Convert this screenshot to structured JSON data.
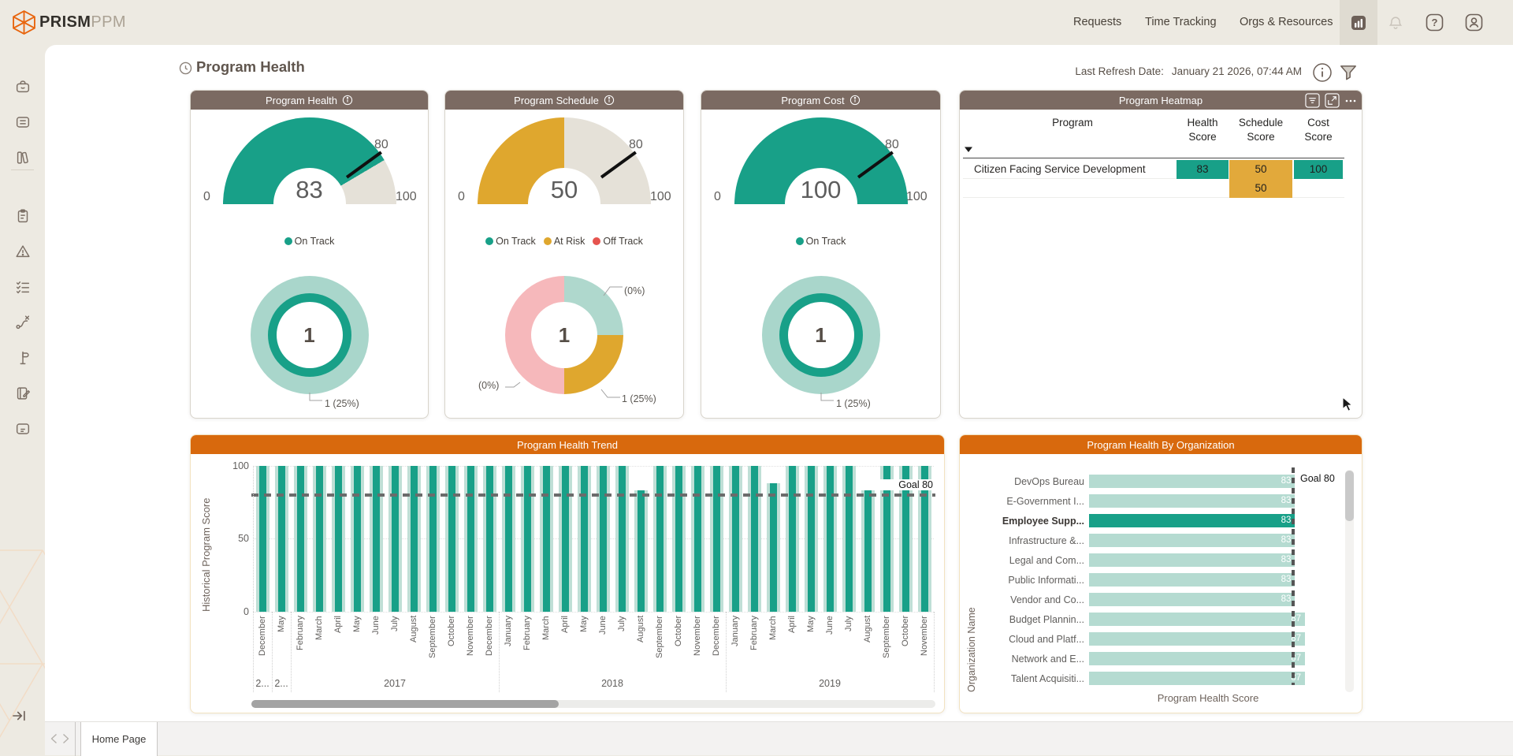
{
  "brand": {
    "bold": "PRISM",
    "light": "PPM"
  },
  "topnav": {
    "links": [
      "Requests",
      "Time Tracking",
      "Orgs & Resources"
    ],
    "icons": [
      "reports-icon",
      "notifications-bell-icon",
      "help-icon",
      "account-icon"
    ]
  },
  "page": {
    "title": "Program Health",
    "last_refresh_label": "Last Refresh Date:",
    "last_refresh_value": "January 21 2026, 07:44 AM"
  },
  "sidebar": {
    "icons": [
      "briefcase-icon",
      "cards-icon",
      "library-icon",
      "clipboard-icon",
      "risk-warning-icon",
      "checklist-icon",
      "route-icon",
      "milestone-flag-icon",
      "notebook-icon",
      "id-card-icon",
      "expand-sidebar-icon"
    ]
  },
  "footer": {
    "active_tab": "Home Page"
  },
  "colors": {
    "teal": "#18A088",
    "teal_light": "#B5DBD1",
    "amber": "#DFA72E",
    "pink": "#F6B8BB",
    "red": "#E6544F",
    "orange_header": "#D8690D",
    "brown_header": "#7B6A62",
    "beige": "#EDEAE2"
  },
  "chart_data": [
    {
      "id": "health_gauge",
      "type": "gauge",
      "title": "Program Health",
      "value": 83,
      "min": 0,
      "max": 100,
      "target": 80,
      "color": "#18A088",
      "legend": [
        {
          "label": "On Track",
          "color": "#18A088"
        }
      ]
    },
    {
      "id": "health_donut",
      "type": "donut",
      "center_value": "1",
      "outer_color": "#A9D6CB",
      "ring_color": "#18A088",
      "segments": [
        {
          "label": "On Track",
          "value": 1,
          "callout": "1 (25%)"
        }
      ]
    },
    {
      "id": "schedule_gauge",
      "type": "gauge",
      "title": "Program Schedule",
      "value": 50,
      "min": 0,
      "max": 100,
      "target": 80,
      "color": "#DFA72E",
      "legend": [
        {
          "label": "On Track",
          "color": "#18A088"
        },
        {
          "label": "At Risk",
          "color": "#DFA72E"
        },
        {
          "label": "Off Track",
          "color": "#E6544F"
        }
      ]
    },
    {
      "id": "schedule_donut",
      "type": "donut",
      "center_value": "1",
      "segments": [
        {
          "label": "On Track",
          "callout": "(0%)",
          "sweep": 25,
          "color": "#AFD8CD"
        },
        {
          "label": "At Risk",
          "callout": "1 (25%)",
          "sweep": 25,
          "color": "#DFA72E"
        },
        {
          "label": "Off Track",
          "callout": "(0%)",
          "sweep": 50,
          "color": "#F6B8BB"
        }
      ]
    },
    {
      "id": "cost_gauge",
      "type": "gauge",
      "title": "Program Cost",
      "value": 100,
      "min": 0,
      "max": 100,
      "target": 80,
      "color": "#18A088",
      "legend": [
        {
          "label": "On Track",
          "color": "#18A088"
        }
      ]
    },
    {
      "id": "cost_donut",
      "type": "donut",
      "center_value": "1",
      "outer_color": "#A9D6CB",
      "ring_color": "#18A088",
      "segments": [
        {
          "label": "On Track",
          "value": 1,
          "callout": "1 (25%)"
        }
      ]
    },
    {
      "id": "heatmap",
      "type": "table",
      "title": "Program Heatmap",
      "columns": [
        "Program",
        "Health Score",
        "Schedule Score",
        "Cost Score"
      ],
      "rows": [
        {
          "program": "Citizen Facing Service Development",
          "cells": [
            {
              "col": "health",
              "value": "83",
              "color": "#18A088"
            },
            {
              "col": "schedule",
              "value": "50",
              "color": "#E2A93B"
            },
            {
              "col": "cost",
              "value": "100",
              "color": "#18A088"
            }
          ]
        },
        {
          "program": "",
          "cells": [
            {
              "col": "schedule",
              "value": "50",
              "color": "#E2A93B"
            }
          ]
        }
      ],
      "toolbar": [
        "filter-icon",
        "popout-icon",
        "more-options-icon"
      ]
    },
    {
      "id": "trend",
      "type": "bar",
      "title": "Program Health Trend",
      "ylabel": "Historical Program Score",
      "yticks": [
        "100",
        "50",
        "0"
      ],
      "ylim": [
        0,
        100
      ],
      "goal": {
        "value": 80,
        "label": "Goal 80"
      },
      "bar_color": "#18A088",
      "band_color": "#BFDFD6",
      "months": [
        "December",
        "May",
        "February",
        "March",
        "April",
        "May",
        "June",
        "July",
        "August",
        "September",
        "October",
        "November",
        "December",
        "January",
        "February",
        "March",
        "April",
        "May",
        "June",
        "July",
        "August",
        "September",
        "October",
        "November",
        "December",
        "January",
        "February",
        "March",
        "April",
        "May",
        "June",
        "July",
        "August",
        "September",
        "October",
        "November"
      ],
      "values": [
        100,
        100,
        100,
        100,
        100,
        100,
        100,
        100,
        100,
        100,
        100,
        100,
        100,
        100,
        100,
        100,
        100,
        100,
        100,
        100,
        83,
        100,
        100,
        100,
        100,
        100,
        100,
        88,
        100,
        100,
        100,
        100,
        83,
        100,
        100,
        100
      ],
      "years": [
        {
          "label": "2...",
          "span": 1
        },
        {
          "label": "2...",
          "span": 1
        },
        {
          "label": "2017",
          "span": 11
        },
        {
          "label": "2018",
          "span": 12
        },
        {
          "label": "2019",
          "span": 11
        }
      ]
    },
    {
      "id": "by_org",
      "type": "bar-horizontal",
      "title": "Program Health By Organization",
      "xlabel": "Program Health Score",
      "ylabel": "Organization Name",
      "xmax": 100,
      "goal": {
        "value": 80,
        "label": "Goal 80"
      },
      "bar_color": "#B5DBD1",
      "highlight_color": "#18A088",
      "highlight_index": 2,
      "categories": [
        "DevOps Bureau",
        "E-Government I...",
        "Employee Supp...",
        "Infrastructure &...",
        "Legal and Com...",
        "Public Informati...",
        "Vendor and Co...",
        "Budget Plannin...",
        "Cloud and Platf...",
        "Network and E...",
        "Talent Acquisiti..."
      ],
      "values": [
        83,
        83,
        83,
        83,
        83,
        83,
        83,
        87,
        87,
        87,
        87
      ]
    }
  ]
}
